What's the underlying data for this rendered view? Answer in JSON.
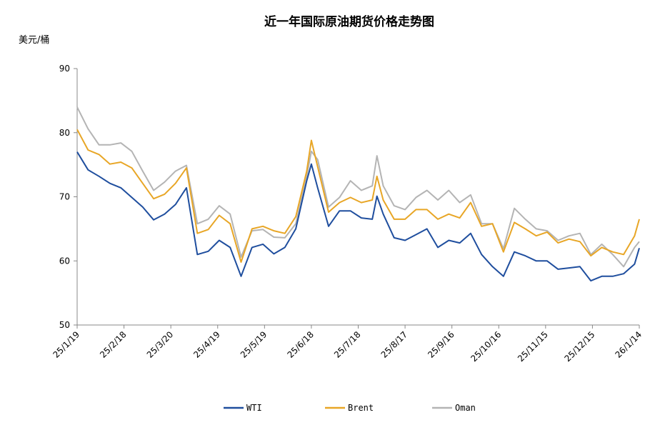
{
  "chart_data": {
    "type": "line",
    "title": "近一年国际原油期货价格走势图",
    "ylabel": "美元/桶",
    "xlabel": "",
    "ylim": [
      50,
      90
    ],
    "yticks": [
      50,
      60,
      70,
      80,
      90
    ],
    "xlim": [
      "2025-01-19",
      "2026-01-14"
    ],
    "xtick_labels": [
      "25/1/19",
      "25/2/18",
      "25/3/20",
      "25/4/19",
      "25/5/19",
      "25/6/18",
      "25/7/18",
      "25/8/17",
      "25/9/16",
      "25/10/16",
      "25/11/15",
      "25/12/15",
      "26/1/14"
    ],
    "xtick_dates": [
      "2025-01-19",
      "2025-02-18",
      "2025-03-20",
      "2025-04-19",
      "2025-05-19",
      "2025-06-18",
      "2025-07-18",
      "2025-08-17",
      "2025-09-16",
      "2025-10-16",
      "2025-11-15",
      "2025-12-15",
      "2026-01-14"
    ],
    "grid": false,
    "legend_position": "bottom",
    "x": [
      "2025-01-19",
      "2025-01-26",
      "2025-02-02",
      "2025-02-09",
      "2025-02-16",
      "2025-02-23",
      "2025-03-02",
      "2025-03-09",
      "2025-03-16",
      "2025-03-23",
      "2025-03-30",
      "2025-04-06",
      "2025-04-13",
      "2025-04-20",
      "2025-04-27",
      "2025-05-04",
      "2025-05-11",
      "2025-05-18",
      "2025-05-25",
      "2025-06-01",
      "2025-06-08",
      "2025-06-15",
      "2025-06-18",
      "2025-06-22",
      "2025-06-29",
      "2025-07-06",
      "2025-07-13",
      "2025-07-20",
      "2025-07-27",
      "2025-07-30",
      "2025-08-03",
      "2025-08-10",
      "2025-08-17",
      "2025-08-24",
      "2025-08-31",
      "2025-09-07",
      "2025-09-14",
      "2025-09-21",
      "2025-09-28",
      "2025-10-05",
      "2025-10-12",
      "2025-10-19",
      "2025-10-26",
      "2025-11-02",
      "2025-11-09",
      "2025-11-16",
      "2025-11-23",
      "2025-11-30",
      "2025-12-07",
      "2025-12-14",
      "2025-12-21",
      "2025-12-28",
      "2026-01-04",
      "2026-01-11",
      "2026-01-14"
    ],
    "series": [
      {
        "name": "WTI",
        "color": "#1f4e9e",
        "values": [
          77.0,
          74.2,
          73.2,
          72.1,
          71.4,
          69.9,
          68.4,
          66.4,
          67.3,
          68.8,
          71.4,
          61.0,
          61.5,
          63.2,
          62.1,
          57.6,
          62.1,
          62.6,
          61.1,
          62.1,
          65.0,
          72.5,
          75.1,
          71.4,
          65.4,
          67.8,
          67.8,
          66.7,
          66.5,
          70.1,
          67.3,
          63.6,
          63.2,
          64.1,
          65.0,
          62.1,
          63.2,
          62.8,
          64.3,
          61.0,
          59.1,
          57.6,
          61.4,
          60.8,
          60.0,
          60.0,
          58.7,
          58.9,
          59.1,
          56.9,
          57.6,
          57.6,
          58.0,
          59.5,
          62.0
        ]
      },
      {
        "name": "Brent",
        "color": "#e8a626",
        "values": [
          80.5,
          77.3,
          76.6,
          75.1,
          75.4,
          74.5,
          72.1,
          69.7,
          70.4,
          72.1,
          74.5,
          64.3,
          64.9,
          67.1,
          65.8,
          59.8,
          65.0,
          65.4,
          64.7,
          64.3,
          66.9,
          74.0,
          78.8,
          74.7,
          67.6,
          69.1,
          69.9,
          69.1,
          69.5,
          73.2,
          69.5,
          66.5,
          66.5,
          68.0,
          68.0,
          66.5,
          67.3,
          66.7,
          69.1,
          65.4,
          65.8,
          61.4,
          66.0,
          65.0,
          63.9,
          64.5,
          62.8,
          63.4,
          63.0,
          60.8,
          62.1,
          61.4,
          61.0,
          63.9,
          66.5
        ]
      },
      {
        "name": "Oman",
        "color": "#b4b4b4",
        "values": [
          84.0,
          80.6,
          78.1,
          78.1,
          78.4,
          77.1,
          74.0,
          71.0,
          72.3,
          74.0,
          74.9,
          65.8,
          66.5,
          68.6,
          67.3,
          60.6,
          64.7,
          64.9,
          63.7,
          63.6,
          65.8,
          73.2,
          77.1,
          75.8,
          68.4,
          69.9,
          72.5,
          71.0,
          71.7,
          76.4,
          71.7,
          68.6,
          68.0,
          69.9,
          71.0,
          69.5,
          71.0,
          69.1,
          70.3,
          65.8,
          65.8,
          61.9,
          68.2,
          66.5,
          65.0,
          64.7,
          63.2,
          63.9,
          64.3,
          61.0,
          62.6,
          61.0,
          59.1,
          62.1,
          63.0
        ]
      }
    ]
  }
}
